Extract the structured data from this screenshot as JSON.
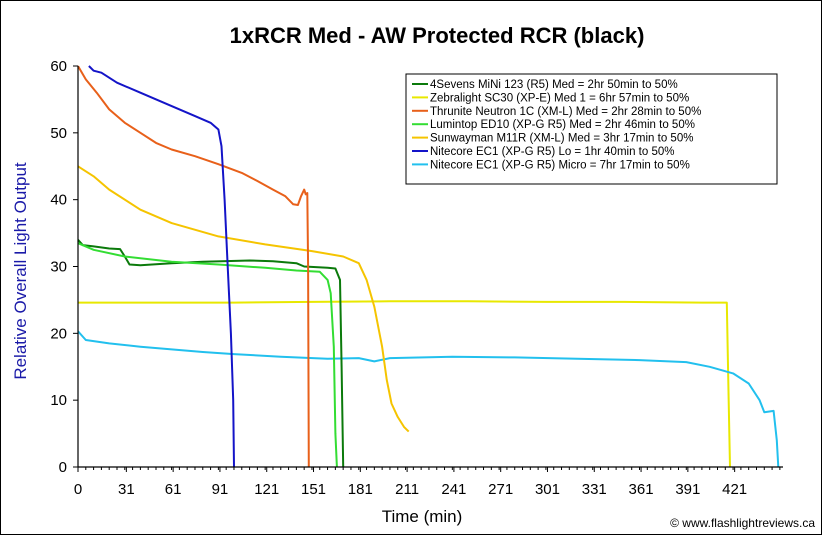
{
  "chart_data": {
    "type": "line",
    "title": "1xRCR Med - AW Protected RCR (black)",
    "xlabel": "Time (min)",
    "ylabel": "Relative Overall Light Output",
    "xlim": [
      0,
      452
    ],
    "ylim": [
      0,
      60
    ],
    "xticks": [
      0,
      31,
      61,
      91,
      121,
      151,
      181,
      211,
      241,
      271,
      301,
      331,
      361,
      391,
      421
    ],
    "yticks": [
      0,
      10,
      20,
      30,
      40,
      50,
      60
    ],
    "grid": false,
    "legend_position": "top-right",
    "credit": "© www.flashlightreviews.ca",
    "series": [
      {
        "name": "4Sevens MiNi 123 (R5) Med = 2hr 50min to 50%",
        "color": "#0b7a0b",
        "points": [
          [
            0,
            34
          ],
          [
            3,
            33.2
          ],
          [
            10,
            33
          ],
          [
            20,
            32.7
          ],
          [
            27,
            32.6
          ],
          [
            30,
            31.5
          ],
          [
            33,
            30.3
          ],
          [
            40,
            30.2
          ],
          [
            60,
            30.5
          ],
          [
            80,
            30.7
          ],
          [
            110,
            30.9
          ],
          [
            125,
            30.8
          ],
          [
            140,
            30.5
          ],
          [
            145,
            30
          ],
          [
            160,
            29.8
          ],
          [
            165,
            29.7
          ],
          [
            168,
            28
          ],
          [
            169,
            15
          ],
          [
            170,
            0
          ]
        ]
      },
      {
        "name": "Zebralight SC30 (XP-E) Med 1 = 6hr 57min to 50%",
        "color": "#e8e800",
        "points": [
          [
            0,
            24.6
          ],
          [
            50,
            24.6
          ],
          [
            100,
            24.6
          ],
          [
            150,
            24.7
          ],
          [
            200,
            24.8
          ],
          [
            250,
            24.8
          ],
          [
            300,
            24.7
          ],
          [
            350,
            24.7
          ],
          [
            400,
            24.6
          ],
          [
            416,
            24.6
          ],
          [
            417,
            12
          ],
          [
            418,
            0
          ]
        ]
      },
      {
        "name": "Thrunite Neutron 1C (XM-L) Med = 2hr 28min to 50%",
        "color": "#e8601a",
        "points": [
          [
            0,
            60
          ],
          [
            5,
            58
          ],
          [
            12,
            56
          ],
          [
            20,
            53.5
          ],
          [
            30,
            51.5
          ],
          [
            40,
            50
          ],
          [
            50,
            48.5
          ],
          [
            60,
            47.5
          ],
          [
            75,
            46.5
          ],
          [
            90,
            45.3
          ],
          [
            105,
            44
          ],
          [
            115,
            42.8
          ],
          [
            125,
            41.5
          ],
          [
            133,
            40.5
          ],
          [
            138,
            39.3
          ],
          [
            141,
            39.2
          ],
          [
            143,
            40.5
          ],
          [
            145,
            41.5
          ],
          [
            146,
            40.8
          ],
          [
            147,
            41
          ],
          [
            147.5,
            30
          ],
          [
            148,
            0
          ]
        ]
      },
      {
        "name": "Lumintop ED10 (XP-G R5) Med = 2hr 46min to 50%",
        "color": "#33dd33",
        "points": [
          [
            0,
            33.5
          ],
          [
            10,
            32.5
          ],
          [
            30,
            31.5
          ],
          [
            60,
            30.7
          ],
          [
            90,
            30.3
          ],
          [
            120,
            29.8
          ],
          [
            140,
            29.4
          ],
          [
            155,
            29.2
          ],
          [
            160,
            28
          ],
          [
            162,
            26
          ],
          [
            164,
            18
          ],
          [
            165,
            5
          ],
          [
            166,
            0
          ]
        ]
      },
      {
        "name": "Sunwayman M11R (XM-L) Med = 3hr 17min to 50%",
        "color": "#f5c400",
        "points": [
          [
            0,
            45
          ],
          [
            10,
            43.5
          ],
          [
            20,
            41.5
          ],
          [
            40,
            38.5
          ],
          [
            60,
            36.5
          ],
          [
            90,
            34.5
          ],
          [
            120,
            33.3
          ],
          [
            150,
            32.3
          ],
          [
            170,
            31.5
          ],
          [
            180,
            30.5
          ],
          [
            185,
            28
          ],
          [
            190,
            24
          ],
          [
            195,
            18
          ],
          [
            198,
            13
          ],
          [
            201,
            9.5
          ],
          [
            205,
            7.5
          ],
          [
            209,
            6
          ],
          [
            212,
            5.3
          ]
        ]
      },
      {
        "name": "Nitecore EC1 (XP-G R5) Lo = 1hr 40min to 50%",
        "color": "#1414c8",
        "points": [
          [
            7,
            60
          ],
          [
            10,
            59.3
          ],
          [
            15,
            59
          ],
          [
            25,
            57.5
          ],
          [
            40,
            56
          ],
          [
            60,
            54
          ],
          [
            75,
            52.5
          ],
          [
            85,
            51.5
          ],
          [
            90,
            50.5
          ],
          [
            92,
            48
          ],
          [
            94,
            40
          ],
          [
            96,
            30
          ],
          [
            98,
            20
          ],
          [
            99.5,
            10
          ],
          [
            100,
            0
          ]
        ]
      },
      {
        "name": "Nitecore EC1 (XP-G R5) Micro = 7hr 17min to 50%",
        "color": "#22c0ee",
        "points": [
          [
            0,
            20.3
          ],
          [
            5,
            19
          ],
          [
            20,
            18.5
          ],
          [
            40,
            18
          ],
          [
            60,
            17.6
          ],
          [
            80,
            17.2
          ],
          [
            100,
            16.9
          ],
          [
            130,
            16.5
          ],
          [
            160,
            16.2
          ],
          [
            180,
            16.3
          ],
          [
            190,
            15.8
          ],
          [
            200,
            16.3
          ],
          [
            240,
            16.5
          ],
          [
            280,
            16.4
          ],
          [
            320,
            16.2
          ],
          [
            360,
            16
          ],
          [
            390,
            15.7
          ],
          [
            405,
            15
          ],
          [
            420,
            14
          ],
          [
            430,
            12.5
          ],
          [
            437,
            10
          ],
          [
            440,
            8.2
          ],
          [
            446,
            8.4
          ],
          [
            448,
            4
          ],
          [
            449,
            0
          ]
        ]
      }
    ]
  }
}
